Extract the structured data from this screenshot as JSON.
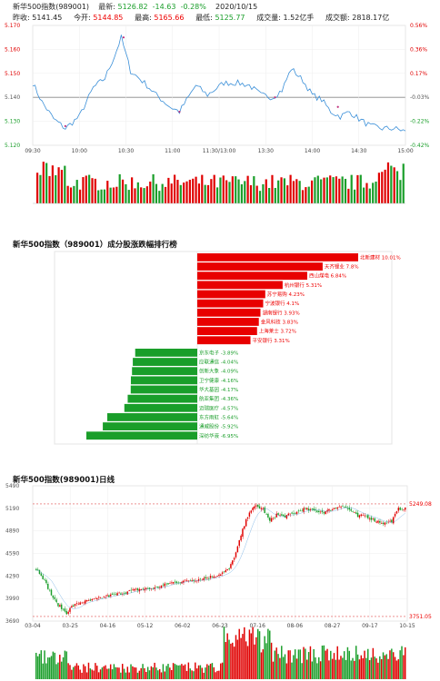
{
  "quote": {
    "name": "新华500指数(989001)",
    "latest_label": "最新:",
    "latest": "5126.82",
    "change": "-14.63",
    "change_pct": "-0.28%",
    "date": "2020/10/15",
    "prev_close_label": "昨收:",
    "prev_close": "5141.45",
    "open_label": "今开:",
    "open": "5144.85",
    "high_label": "最高:",
    "high": "5165.66",
    "low_label": "最低:",
    "low": "5125.77",
    "volume_label": "成交量:",
    "volume": "1.52亿手",
    "amount_label": "成交额:",
    "amount": "2818.17亿"
  },
  "intraday": {
    "y_left": [
      "5.170",
      "5.160",
      "5.150",
      "5.140",
      "5.130",
      "5.120"
    ],
    "y_right": [
      "0.56%",
      "0.36%",
      "0.17%",
      "-0.03%",
      "-0.22%",
      "-0.42%"
    ],
    "x_labels": [
      "09:30",
      "10:00",
      "10:30",
      "11:00",
      "11:30/13:00",
      "13:30",
      "14:00",
      "14:30",
      "15:00"
    ],
    "colors": {
      "line": "#3a8fd8",
      "prev_close": "#888888",
      "up": "#e00000",
      "down": "#1a9e2a"
    }
  },
  "ranking": {
    "title": "新华500指数（989001）成分股涨跌幅排行榜",
    "gainers": [
      {
        "name": "北新建材",
        "value": 10.01
      },
      {
        "name": "天齐锂业",
        "value": 7.8
      },
      {
        "name": "西山煤电",
        "value": 6.84
      },
      {
        "name": "杭州银行",
        "value": 5.31
      },
      {
        "name": "苏宁易购",
        "value": 4.23
      },
      {
        "name": "宁波银行",
        "value": 4.1
      },
      {
        "name": "湖南银行",
        "value": 3.93
      },
      {
        "name": "金风科技",
        "value": 3.83
      },
      {
        "name": "上海莱士",
        "value": 3.72
      },
      {
        "name": "平安银行",
        "value": 3.31
      }
    ],
    "losers": [
      {
        "name": "京东电子",
        "value": -3.89
      },
      {
        "name": "应联通信",
        "value": -4.04
      },
      {
        "name": "创新大象",
        "value": -4.09
      },
      {
        "name": "卫宁健康",
        "value": -4.16
      },
      {
        "name": "华大基因",
        "value": -4.17
      },
      {
        "name": "航亚集团",
        "value": -4.36
      },
      {
        "name": "迈瑞医疗",
        "value": -4.57
      },
      {
        "name": "东方雨虹",
        "value": -5.64
      },
      {
        "name": "通威股份",
        "value": -5.92
      },
      {
        "name": "深纺华液",
        "value": -6.95
      }
    ]
  },
  "daily": {
    "title": "新华500指数(989001)日线",
    "y_labels": [
      "5490",
      "5190",
      "4890",
      "4590",
      "4290",
      "3990",
      "3690"
    ],
    "x_labels": [
      "03-04",
      "03-25",
      "04-16",
      "05-12",
      "06-02",
      "06-23",
      "07-16",
      "08-06",
      "08-27",
      "09-17",
      "10-15"
    ],
    "max_label": "5249.08",
    "min_label": "3751.05"
  }
}
